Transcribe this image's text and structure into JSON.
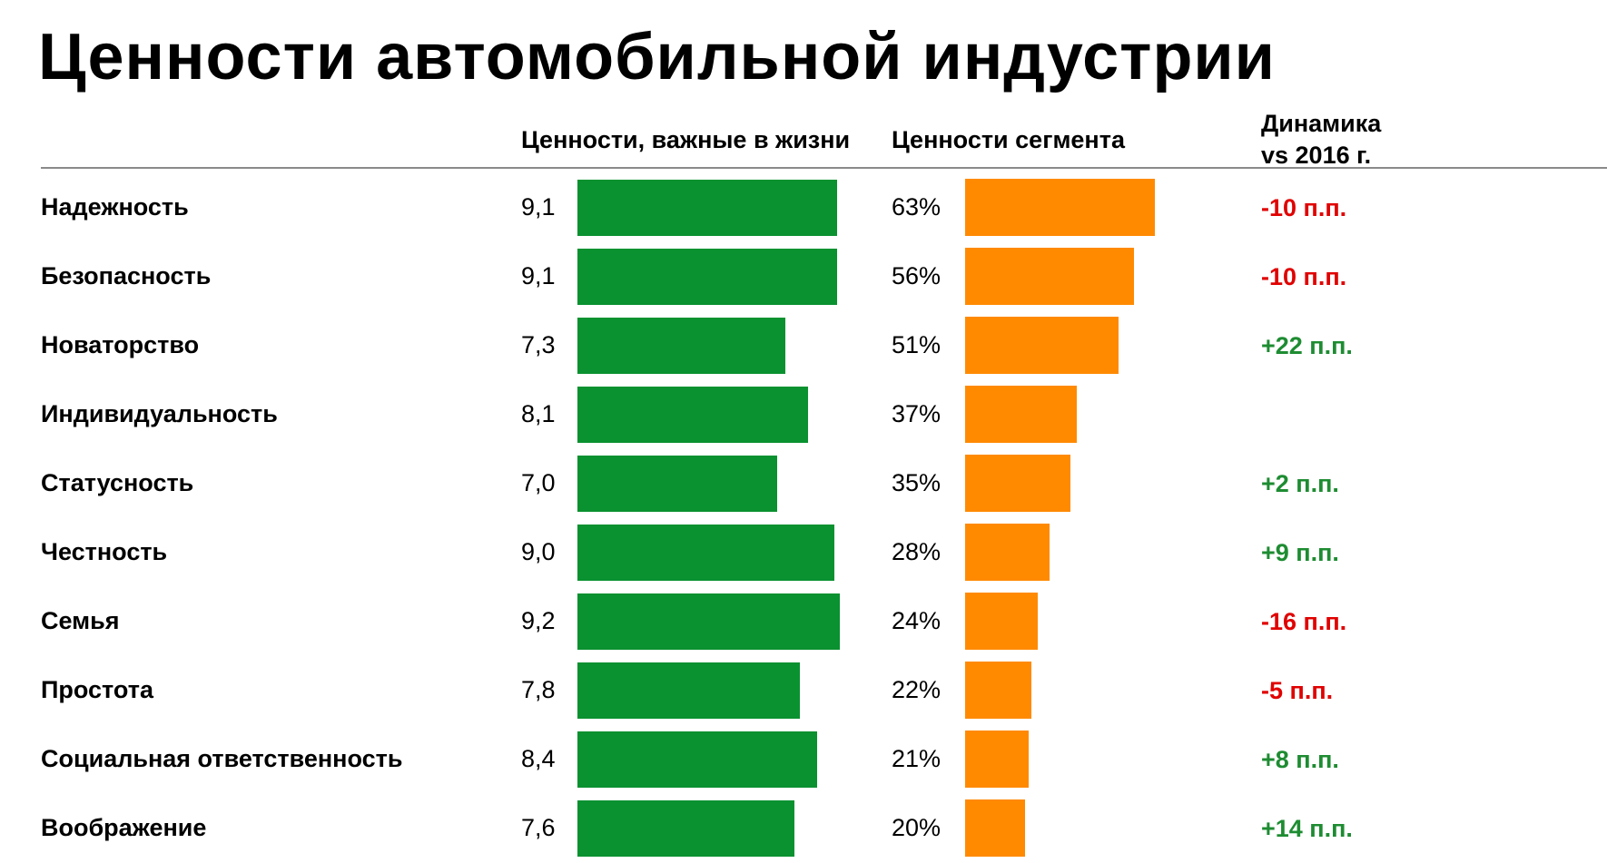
{
  "chart_data": {
    "type": "bar",
    "title": "Ценности автомобильной индустрии",
    "columns": {
      "life": "Ценности, важные в жизни",
      "segment": "Ценности сегмента",
      "dynamics": "Динамика",
      "dynamics2": "vs 2016 г."
    },
    "categories": [
      "Надежность",
      "Безопасность",
      "Новаторство",
      "Индивидуальность",
      "Статусность",
      "Честность",
      "Семья",
      "Простота",
      "Социальная ответственность",
      "Воображение"
    ],
    "series": [
      {
        "name": "Ценности, важные в жизни",
        "values": [
          9.1,
          9.1,
          7.3,
          8.1,
          7.0,
          9.0,
          9.2,
          7.8,
          8.4,
          7.6
        ],
        "labels": [
          "9,1",
          "9,1",
          "7,3",
          "8,1",
          "7,0",
          "9,0",
          "9,2",
          "7,8",
          "8,4",
          "7,6"
        ],
        "color": "#0a9130"
      },
      {
        "name": "Ценности сегмента",
        "values": [
          63,
          56,
          51,
          37,
          35,
          28,
          24,
          22,
          21,
          20
        ],
        "labels": [
          "63%",
          "56%",
          "51%",
          "37%",
          "35%",
          "28%",
          "24%",
          "22%",
          "21%",
          "20%"
        ],
        "color": "#ff8a00"
      }
    ],
    "dynamics": [
      "-10 п.п.",
      "-10 п.п.",
      "+22 п.п.",
      "",
      "+2 п.п.",
      "+9 п.п.",
      "-16 п.п.",
      "-5 п.п.",
      "+8 п.п.",
      "+14 п.п."
    ],
    "colors": {
      "positive": "#1e8c32",
      "negative": "#e00000"
    }
  }
}
